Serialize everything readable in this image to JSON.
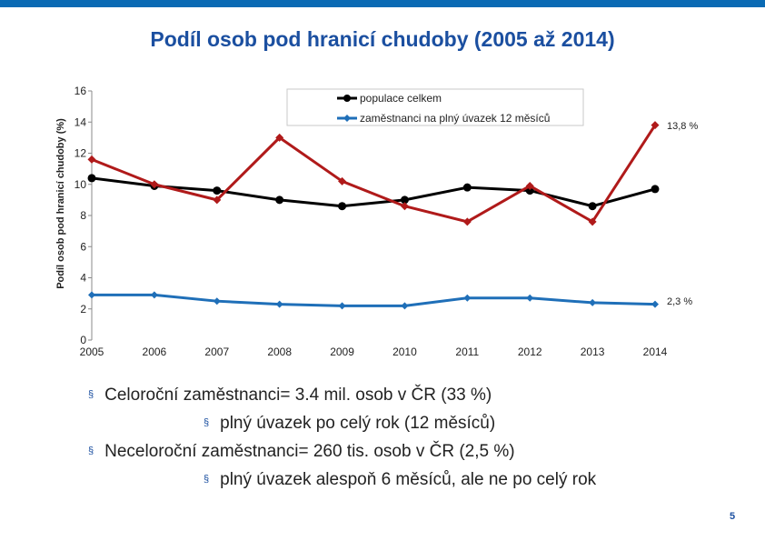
{
  "page_title": "Podíl osob pod hranicí chudoby (2005 až 2014)",
  "page_number": "5",
  "colors": {
    "accent": "#0a6ab4",
    "title": "#1b4fa0"
  },
  "chart_data": {
    "type": "line",
    "title": "",
    "xlabel": "",
    "ylabel": "Podíl osob pod hranicí chudoby (%)",
    "x": [
      "2005",
      "2006",
      "2007",
      "2008",
      "2009",
      "2010",
      "2011",
      "2012",
      "2013",
      "2014"
    ],
    "ylim": [
      0,
      16
    ],
    "yticks": [
      "0",
      "2",
      "4",
      "6",
      "8",
      "10",
      "12",
      "14",
      "16"
    ],
    "grid": false,
    "legend_position": "top-right",
    "series": [
      {
        "name": "populace celkem",
        "color": "#000000",
        "values": [
          10.4,
          9.9,
          9.6,
          9.0,
          8.6,
          9.0,
          9.8,
          9.6,
          8.6,
          9.7
        ]
      },
      {
        "name": "zaměstnanci na plný úvazek 12 měsíců",
        "color": "#1f6fb8",
        "values": [
          2.9,
          2.9,
          2.5,
          2.3,
          2.2,
          2.2,
          2.7,
          2.7,
          2.4,
          2.3
        ]
      },
      {
        "name": "",
        "color": "#b01a1a",
        "values": [
          11.6,
          10.0,
          9.0,
          13.0,
          10.2,
          8.6,
          7.6,
          9.9,
          7.6,
          13.8
        ]
      }
    ],
    "annotations": [
      "13,8 %",
      "2,3 %"
    ]
  },
  "bullets": [
    {
      "level": 1,
      "text": "Celoroční zaměstnanci= 3.4 mil. osob v ČR (33 %)"
    },
    {
      "level": 2,
      "text": "plný úvazek po celý rok (12 měsíců)"
    },
    {
      "level": 1,
      "text": "Neceloroční zaměstnanci= 260 tis. osob v ČR (2,5 %)"
    },
    {
      "level": 2,
      "text": "plný úvazek alespoň 6 měsíců, ale ne po celý rok"
    }
  ],
  "bullet_marker": "§"
}
